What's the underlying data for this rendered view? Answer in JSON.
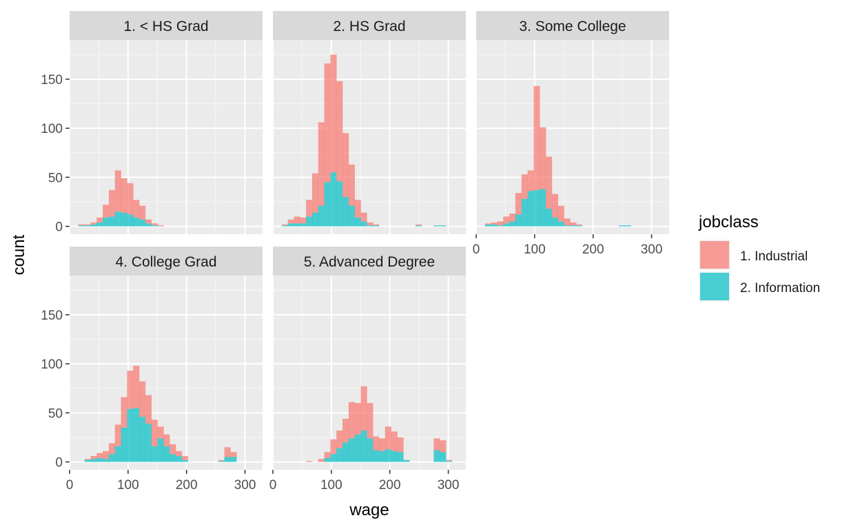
{
  "chart_data": {
    "type": "bar",
    "subtype": "stacked histogram, faceted",
    "xlabel": "wage",
    "ylabel": "count",
    "xlim": [
      0,
      330
    ],
    "ylim": [
      -8,
      190
    ],
    "x_ticks": [
      0,
      100,
      200,
      300
    ],
    "y_ticks": [
      0,
      50,
      100,
      150
    ],
    "grid": true,
    "bin_width": 10.4,
    "bin_start": 15.1,
    "legend": {
      "title": "jobclass",
      "placement": "right",
      "entries": [
        {
          "label": "1. Industrial",
          "color": "#F8766D"
        },
        {
          "label": "2. Information",
          "color": "#00BFC4"
        }
      ]
    },
    "series_colors": {
      "industrial": "#F8766D",
      "information": "#00BFC4"
    },
    "panels": [
      {
        "label": "1. < HS Grad",
        "industrial": [
          1,
          1,
          2,
          5,
          13,
          27,
          42,
          35,
          32,
          18,
          14,
          4,
          2,
          1,
          0,
          0,
          0,
          0,
          0,
          0,
          0,
          0,
          0,
          0,
          0,
          0,
          0,
          0,
          0,
          0
        ],
        "information": [
          1,
          1,
          2,
          4,
          9,
          10,
          15,
          14,
          12,
          9,
          7,
          3,
          1,
          0,
          0,
          0,
          0,
          0,
          0,
          0,
          0,
          0,
          0,
          0,
          0,
          0,
          0,
          0,
          0,
          0
        ]
      },
      {
        "label": "2. HS Grad",
        "industrial": [
          1,
          4,
          7,
          6,
          17,
          40,
          85,
          121,
          120,
          102,
          65,
          42,
          18,
          9,
          3,
          1,
          0,
          0,
          0,
          0,
          0,
          0,
          1,
          0,
          0,
          0,
          0,
          0,
          0,
          0
        ],
        "information": [
          1,
          3,
          3,
          3,
          10,
          14,
          21,
          45,
          55,
          46,
          30,
          21,
          9,
          5,
          1,
          1,
          0,
          0,
          0,
          0,
          0,
          0,
          1,
          0,
          0,
          1,
          1,
          0,
          0,
          0
        ],
        "x_end_note": "axis labels hidden (shared)"
      },
      {
        "label": "3. Some College",
        "industrial": [
          1,
          2,
          4,
          7,
          8,
          22,
          25,
          21,
          106,
          63,
          53,
          24,
          16,
          7,
          3,
          1,
          0,
          0,
          0,
          0,
          0,
          0,
          0,
          0,
          0,
          0,
          0,
          0,
          0,
          0
        ],
        "information": [
          2,
          2,
          1,
          3,
          5,
          12,
          28,
          36,
          37,
          38,
          18,
          9,
          5,
          1,
          1,
          1,
          0,
          0,
          0,
          0,
          0,
          0,
          1,
          1,
          0,
          0,
          0,
          0,
          0,
          0
        ]
      },
      {
        "label": "4. College Grad",
        "industrial": [
          0,
          1,
          3,
          5,
          8,
          11,
          22,
          31,
          39,
          43,
          36,
          29,
          27,
          12,
          12,
          10,
          5,
          4,
          0,
          0,
          0,
          0,
          0,
          1,
          10,
          5,
          0,
          0,
          0,
          0
        ],
        "information": [
          0,
          2,
          3,
          4,
          3,
          8,
          16,
          35,
          54,
          55,
          46,
          39,
          16,
          24,
          16,
          8,
          6,
          2,
          0,
          0,
          0,
          0,
          0,
          1,
          5,
          5,
          0,
          0,
          0,
          0
        ]
      },
      {
        "label": "5. Advanced Degree",
        "industrial": [
          0,
          0,
          0,
          0,
          1,
          0,
          3,
          6,
          15,
          18,
          24,
          37,
          32,
          45,
          36,
          14,
          13,
          23,
          20,
          15,
          0,
          0,
          0,
          0,
          0,
          12,
          12,
          1,
          0,
          0
        ],
        "information": [
          0,
          0,
          0,
          0,
          0,
          0,
          0,
          4,
          8,
          14,
          20,
          24,
          28,
          32,
          24,
          12,
          11,
          13,
          11,
          10,
          2,
          0,
          0,
          0,
          0,
          12,
          10,
          1,
          0,
          0
        ]
      }
    ]
  }
}
